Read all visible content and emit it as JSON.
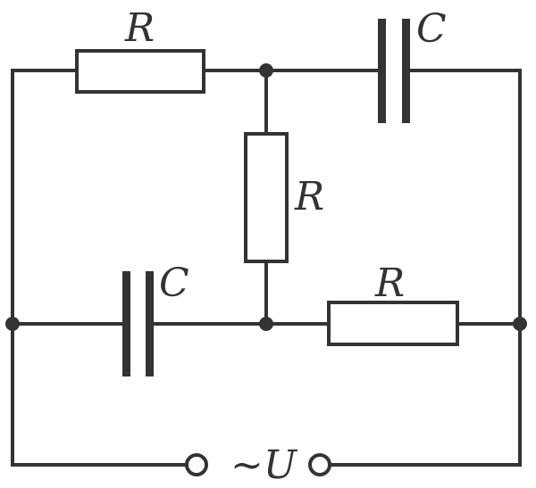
{
  "diagram": {
    "labels": {
      "top_resistor": "R",
      "top_capacitor": "C",
      "middle_resistor": "R",
      "bottom_capacitor": "C",
      "bottom_resistor": "R",
      "source": "~U"
    },
    "colors": {
      "line": "#333333",
      "background": "#ffffff"
    }
  }
}
